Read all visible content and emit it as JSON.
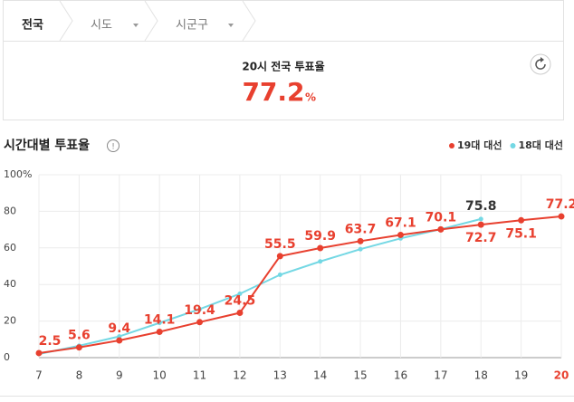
{
  "tabs": [
    "전국",
    "시도",
    "시군구"
  ],
  "summary": {
    "title": "20시 전국 투표율",
    "value": "77.2",
    "unit": "%"
  },
  "chart_data": {
    "type": "line",
    "title": "시간대별 투표율",
    "x": [
      7,
      8,
      9,
      10,
      11,
      12,
      13,
      14,
      15,
      16,
      17,
      18,
      19,
      20
    ],
    "xlim": [
      7,
      20
    ],
    "xticks": [
      7,
      8,
      9,
      10,
      11,
      12,
      13,
      14,
      15,
      16,
      17,
      18,
      19,
      20
    ],
    "ylim": [
      0,
      100
    ],
    "yticks": [
      0,
      20,
      40,
      60,
      80,
      {
        "value": 100,
        "label": "100%"
      }
    ],
    "grid": true,
    "legend": "top-right",
    "series": [
      {
        "name": "19대 대선",
        "color": "#e8402f",
        "values": [
          2.5,
          5.6,
          9.4,
          14.1,
          19.4,
          24.5,
          55.5,
          59.9,
          63.7,
          67.1,
          70.1,
          72.7,
          75.1,
          77.2
        ]
      },
      {
        "name": "18대 대선",
        "color": "#74d8e4",
        "values": [
          2.0,
          6.5,
          11.6,
          19.0,
          26.5,
          34.9,
          45.3,
          52.6,
          59.3,
          65.2,
          70.2,
          75.8,
          null,
          null
        ],
        "value_labels": [
          null,
          null,
          null,
          null,
          null,
          null,
          null,
          null,
          null,
          null,
          null,
          "75.8",
          null,
          null
        ]
      }
    ]
  }
}
